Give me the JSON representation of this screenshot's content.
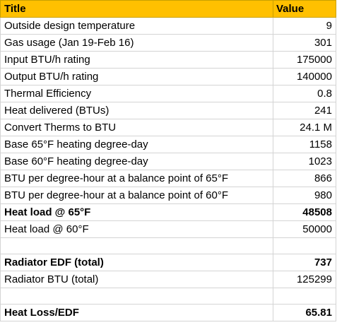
{
  "header": {
    "title": "Title",
    "value": "Value"
  },
  "rows": [
    {
      "label": "Outside design temperature",
      "value": "9",
      "bold": false
    },
    {
      "label": "Gas usage (Jan 19-Feb 16)",
      "value": "301",
      "bold": false
    },
    {
      "label": "Input BTU/h rating",
      "value": "175000",
      "bold": false
    },
    {
      "label": "Output BTU/h rating",
      "value": "140000",
      "bold": false
    },
    {
      "label": "Thermal Efficiency",
      "value": "0.8",
      "bold": false
    },
    {
      "label": "Heat delivered (BTUs)",
      "value": "241",
      "bold": false
    },
    {
      "label": "Convert Therms to BTU",
      "value": "24.1 M",
      "bold": false
    },
    {
      "label": "Base 65°F heating degree-day",
      "value": "1158",
      "bold": false
    },
    {
      "label": "Base 60°F heating degree-day",
      "value": "1023",
      "bold": false
    },
    {
      "label": "BTU per degree-hour at a balance point of 65°F",
      "value": "866",
      "bold": false
    },
    {
      "label": "BTU per degree-hour at a balance point of 60°F",
      "value": "980",
      "bold": false
    },
    {
      "label": "Heat load @ 65°F",
      "value": "48508",
      "bold": true
    },
    {
      "label": "Heat load @ 60°F",
      "value": "50000",
      "bold": false
    },
    {
      "label": "",
      "value": "",
      "bold": false
    },
    {
      "label": "Radiator EDF (total)",
      "value": "737",
      "bold": true
    },
    {
      "label": "Radiator BTU (total)",
      "value": "125299",
      "bold": false
    },
    {
      "label": "",
      "value": "",
      "bold": false
    },
    {
      "label": "Heat Loss/EDF",
      "value": "65.81",
      "bold": true
    }
  ],
  "colors": {
    "header_fill": "#ffc000",
    "grid_line": "#d4d4d4"
  }
}
